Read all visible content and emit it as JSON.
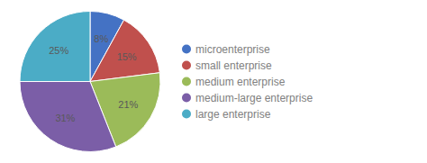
{
  "chart_data": {
    "type": "pie",
    "categories": [
      "microenterprise",
      "small enterprise",
      "medium enterprise",
      "medium-large enterprise",
      "large enterprise"
    ],
    "values": [
      8,
      15,
      21,
      31,
      25
    ],
    "value_labels": [
      "8%",
      "15%",
      "21%",
      "31%",
      "25%"
    ],
    "colors": [
      "#4472C4",
      "#C0504D",
      "#9BBB59",
      "#7B5EA7",
      "#4BACC6"
    ],
    "data_labels": true,
    "legend": "right"
  }
}
